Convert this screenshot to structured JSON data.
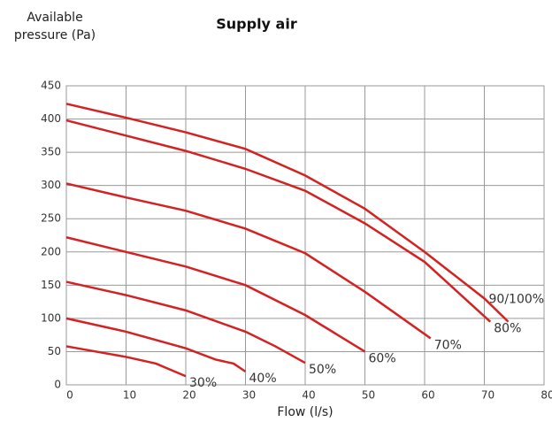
{
  "chart_data": {
    "type": "line",
    "title": "Supply air",
    "y_label": "Available pressure (Pa)",
    "x_label": "Flow (l/s)",
    "xlim": [
      0,
      80
    ],
    "xticks": [
      0,
      10,
      20,
      30,
      40,
      50,
      60,
      70,
      80
    ],
    "ylim": [
      0,
      450
    ],
    "yticks": [
      0,
      50,
      100,
      150,
      200,
      250,
      300,
      350,
      400,
      450
    ],
    "grid": true,
    "series": [
      {
        "name": "30%",
        "color": "#d42222",
        "x": [
          0,
          10,
          15,
          20
        ],
        "values": [
          58,
          42,
          32,
          13
        ]
      },
      {
        "name": "40%",
        "color": "#d42222",
        "x": [
          0,
          10,
          20,
          25,
          28,
          30
        ],
        "values": [
          100,
          80,
          55,
          38,
          32,
          20
        ]
      },
      {
        "name": "50%",
        "color": "#d42222",
        "x": [
          0,
          10,
          20,
          30,
          35,
          40
        ],
        "values": [
          155,
          135,
          112,
          80,
          58,
          33
        ]
      },
      {
        "name": "60%",
        "color": "#d42222",
        "x": [
          0,
          10,
          20,
          30,
          40,
          50
        ],
        "values": [
          222,
          200,
          178,
          150,
          105,
          50
        ]
      },
      {
        "name": "70%",
        "color": "#d42222",
        "x": [
          0,
          10,
          20,
          30,
          40,
          50,
          61
        ],
        "values": [
          303,
          282,
          262,
          235,
          198,
          140,
          70
        ]
      },
      {
        "name": "80%",
        "color": "#d42222",
        "x": [
          0,
          10,
          20,
          30,
          40,
          50,
          60,
          71
        ],
        "values": [
          398,
          375,
          352,
          325,
          292,
          243,
          185,
          95
        ]
      },
      {
        "name": "90/100%",
        "color": "#d42222",
        "x": [
          0,
          10,
          20,
          30,
          40,
          50,
          60,
          70,
          74
        ],
        "values": [
          423,
          402,
          380,
          355,
          315,
          265,
          200,
          130,
          95
        ]
      }
    ]
  }
}
